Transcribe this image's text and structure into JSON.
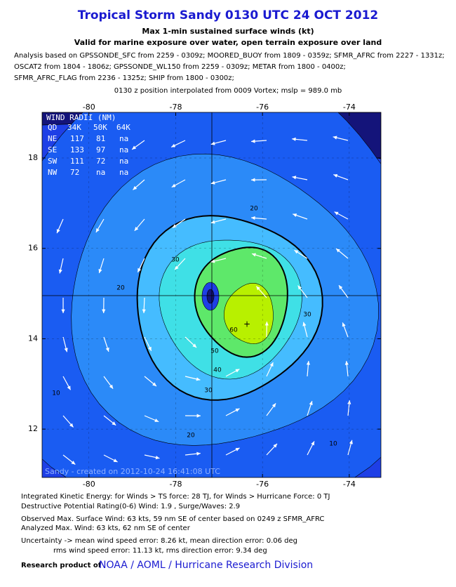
{
  "header": {
    "title": "Tropical Storm Sandy 0130 UTC 24 OCT 2012",
    "subtitle1": "Max 1-min sustained surface winds (kt)",
    "subtitle2": "Valid for marine exposure over water, open terrain exposure over land",
    "analysis": [
      "Analysis based on GPSSONDE_SFC from 2259 - 0309z; MOORED_BUOY from 1809 - 0359z; SFMR_AFRC from 2227 - 1331z;",
      "OSCAT2 from 1804 - 1806z; GPSSONDE_WL150 from 2259 - 0309z; METAR from 1800 - 0400z;",
      "SFMR_AFRC_FLAG from 2236 - 1325z; SHIP from 1800 - 0300z;"
    ],
    "position": "0130 z position interpolated from 0009 Vortex; mslp = 989.0 mb"
  },
  "map": {
    "xlim": [
      -81.08,
      -73.27
    ],
    "ylim": [
      10.93,
      19.01
    ],
    "xticks": [
      -80,
      -78,
      -76,
      -74
    ],
    "yticks": [
      12,
      14,
      16,
      18
    ],
    "contour_levels": [
      10,
      20,
      30,
      40,
      50,
      60
    ],
    "contour_colors": [
      "#1a5cf2",
      "#2b8af8",
      "#45bcff",
      "#3fe0e6",
      "#5ee86a",
      "#b8f000"
    ],
    "wind_radii": {
      "title": "WIND RADII (NM)",
      "columns": [
        "QD",
        "34K",
        "50K",
        "64K"
      ],
      "rows": [
        [
          "NE",
          117,
          81,
          "na"
        ],
        [
          "SE",
          133,
          97,
          "na"
        ],
        [
          "SW",
          111,
          72,
          "na"
        ],
        [
          "NW",
          72,
          "na",
          "na"
        ]
      ]
    },
    "credit": "Sandy - created on 2012-10-24 16:41:08 UTC"
  },
  "footer": {
    "lines": [
      "Integrated Kinetic Energy: for Winds > TS force: 28 TJ, for Winds > Hurricane Force: 0 TJ",
      "Destructive Potential Rating(0-6)  Wind: 1.9 , Surge/Waves: 2.9",
      "Observed Max. Surface Wind: 63 kts, 59 nm SE of center based on 0249 z SFMR_AFRC",
      "Analyzed Max. Wind: 63 kts, 62 nm  SE of center",
      "Uncertainty -> mean wind speed error: 8.26 kt, mean direction error: 0.06 deg",
      "rms wind speed error: 11.13 kt, rms direction error: 9.34 deg"
    ],
    "research": "Research product of",
    "org": "NOAA / AOML / Hurricane Research Division"
  }
}
